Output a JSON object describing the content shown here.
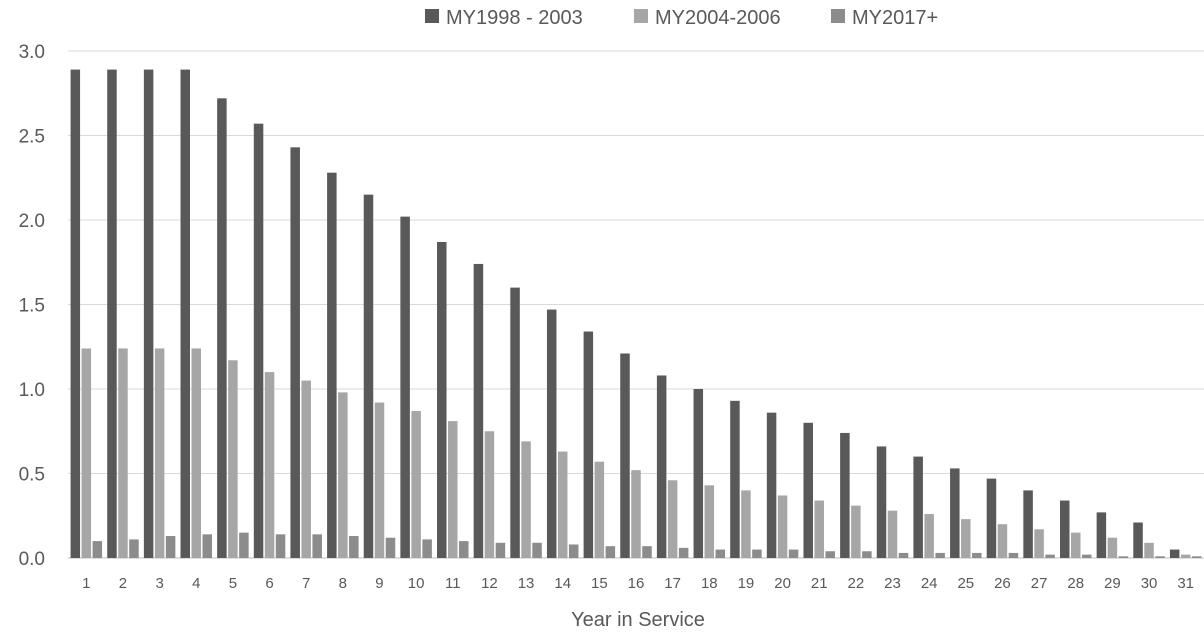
{
  "chart_data": {
    "type": "bar",
    "xlabel": "Year in Service",
    "ylabel": "",
    "ylim": [
      0,
      3.0
    ],
    "yticks": [
      "0.0",
      "0.5",
      "1.0",
      "1.5",
      "2.0",
      "2.5",
      "3.0"
    ],
    "grid": true,
    "legend_position": "top",
    "categories": [
      "1",
      "2",
      "3",
      "4",
      "5",
      "6",
      "7",
      "8",
      "9",
      "10",
      "11",
      "12",
      "13",
      "14",
      "15",
      "16",
      "17",
      "18",
      "19",
      "20",
      "21",
      "22",
      "23",
      "24",
      "25",
      "26",
      "27",
      "28",
      "29",
      "30",
      "31"
    ],
    "series": [
      {
        "name": "MY1998 - 2003",
        "color": "#595959",
        "values": [
          2.89,
          2.89,
          2.89,
          2.89,
          2.72,
          2.57,
          2.43,
          2.28,
          2.15,
          2.02,
          1.87,
          1.74,
          1.6,
          1.47,
          1.34,
          1.21,
          1.08,
          1.0,
          0.93,
          0.86,
          0.8,
          0.74,
          0.66,
          0.6,
          0.53,
          0.47,
          0.4,
          0.34,
          0.27,
          0.21,
          0.05
        ]
      },
      {
        "name": "MY2004-2006",
        "color": "#a6a6a6",
        "values": [
          1.24,
          1.24,
          1.24,
          1.24,
          1.17,
          1.1,
          1.05,
          0.98,
          0.92,
          0.87,
          0.81,
          0.75,
          0.69,
          0.63,
          0.57,
          0.52,
          0.46,
          0.43,
          0.4,
          0.37,
          0.34,
          0.31,
          0.28,
          0.26,
          0.23,
          0.2,
          0.17,
          0.15,
          0.12,
          0.09,
          0.02
        ]
      },
      {
        "name": "MY2017+",
        "color": "#8c8c8c",
        "values": [
          0.1,
          0.11,
          0.13,
          0.14,
          0.15,
          0.14,
          0.14,
          0.13,
          0.12,
          0.11,
          0.1,
          0.09,
          0.09,
          0.08,
          0.07,
          0.07,
          0.06,
          0.05,
          0.05,
          0.05,
          0.04,
          0.04,
          0.03,
          0.03,
          0.03,
          0.03,
          0.02,
          0.02,
          0.01,
          0.01,
          0.01
        ]
      }
    ]
  }
}
